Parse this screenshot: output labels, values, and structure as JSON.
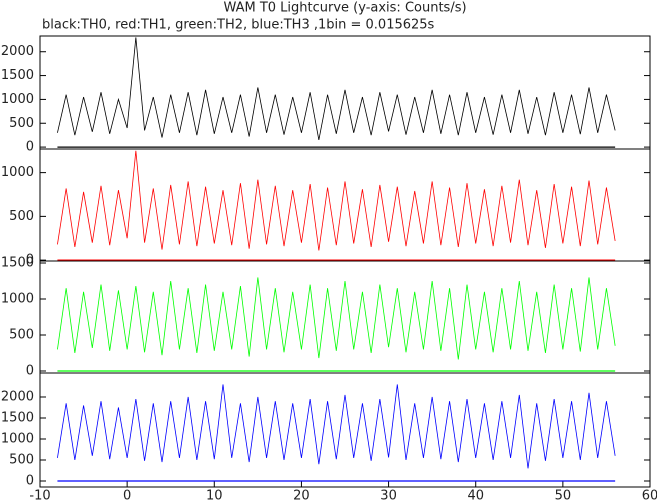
{
  "chart_data": [
    {
      "type": "line",
      "title": "WAM T0 Lightcurve (y-axis: Counts/s)",
      "subtitle": "black:TH0, red:TH1, green:TH2, blue:TH3 ,1bin = 0.015625s",
      "x": [
        -8,
        -7,
        -6,
        -5,
        -4,
        -3,
        -2,
        -1,
        0,
        1,
        2,
        3,
        4,
        5,
        6,
        7,
        8,
        9,
        10,
        11,
        12,
        13,
        14,
        15,
        16,
        17,
        18,
        19,
        20,
        21,
        22,
        23,
        24,
        25,
        26,
        27,
        28,
        29,
        30,
        31,
        32,
        33,
        34,
        35,
        36,
        37,
        38,
        39,
        40,
        41,
        42,
        43,
        44,
        45,
        46,
        47,
        48,
        49,
        50,
        51,
        52,
        53,
        54,
        55,
        56
      ],
      "series": [
        {
          "name": "TH0",
          "color": "#000000",
          "values": [
            300,
            1100,
            250,
            1050,
            320,
            1150,
            280,
            1000,
            400,
            2300,
            350,
            1050,
            200,
            1100,
            300,
            1150,
            250,
            1200,
            280,
            1050,
            300,
            1100,
            220,
            1250,
            300,
            1100,
            260,
            1050,
            300,
            1150,
            150,
            1100,
            280,
            1200,
            300,
            1050,
            250,
            1150,
            330,
            1100,
            260,
            1050,
            300,
            1200,
            280,
            1100,
            250,
            1150,
            300,
            1050,
            260,
            1100,
            300,
            1200,
            280,
            1050,
            250,
            1150,
            300,
            1100,
            270,
            1250,
            300,
            1100,
            350
          ]
        }
      ],
      "xlim": [
        -10,
        60
      ],
      "ylim": [
        -40,
        2330
      ],
      "yticks": [
        0,
        500,
        1000,
        1500,
        2000
      ]
    },
    {
      "type": "line",
      "x": [
        -8,
        -7,
        -6,
        -5,
        -4,
        -3,
        -2,
        -1,
        0,
        1,
        2,
        3,
        4,
        5,
        6,
        7,
        8,
        9,
        10,
        11,
        12,
        13,
        14,
        15,
        16,
        17,
        18,
        19,
        20,
        21,
        22,
        23,
        24,
        25,
        26,
        27,
        28,
        29,
        30,
        31,
        32,
        33,
        34,
        35,
        36,
        37,
        38,
        39,
        40,
        41,
        42,
        43,
        44,
        45,
        46,
        47,
        48,
        49,
        50,
        51,
        52,
        53,
        54,
        55,
        56
      ],
      "series": [
        {
          "name": "TH1",
          "color": "#ff0000",
          "values": [
            180,
            820,
            150,
            780,
            200,
            850,
            170,
            800,
            250,
            1250,
            200,
            820,
            120,
            860,
            180,
            900,
            160,
            840,
            190,
            800,
            170,
            880,
            130,
            920,
            180,
            850,
            160,
            800,
            200,
            870,
            110,
            830,
            170,
            900,
            190,
            810,
            150,
            860,
            210,
            840,
            160,
            790,
            190,
            900,
            170,
            830,
            150,
            880,
            190,
            810,
            160,
            850,
            200,
            920,
            170,
            800,
            140,
            870,
            190,
            840,
            160,
            910,
            180,
            830,
            220
          ]
        }
      ],
      "xlim": [
        -10,
        60
      ],
      "ylim": [
        -10,
        1270
      ],
      "yticks": [
        0,
        500,
        1000
      ]
    },
    {
      "type": "line",
      "x": [
        -8,
        -7,
        -6,
        -5,
        -4,
        -3,
        -2,
        -1,
        0,
        1,
        2,
        3,
        4,
        5,
        6,
        7,
        8,
        9,
        10,
        11,
        12,
        13,
        14,
        15,
        16,
        17,
        18,
        19,
        20,
        21,
        22,
        23,
        24,
        25,
        26,
        27,
        28,
        29,
        30,
        31,
        32,
        33,
        34,
        35,
        36,
        37,
        38,
        39,
        40,
        41,
        42,
        43,
        44,
        45,
        46,
        47,
        48,
        49,
        50,
        51,
        52,
        53,
        54,
        55,
        56
      ],
      "series": [
        {
          "name": "TH2",
          "color": "#00ff00",
          "values": [
            300,
            1150,
            250,
            1100,
            320,
            1200,
            280,
            1120,
            300,
            1180,
            260,
            1100,
            220,
            1250,
            300,
            1150,
            250,
            1200,
            280,
            1100,
            300,
            1180,
            200,
            1300,
            300,
            1150,
            260,
            1100,
            300,
            1200,
            180,
            1150,
            280,
            1250,
            300,
            1100,
            250,
            1200,
            330,
            1150,
            260,
            1100,
            300,
            1250,
            280,
            1150,
            160,
            1200,
            300,
            1100,
            260,
            1150,
            300,
            1250,
            280,
            1100,
            250,
            1200,
            300,
            1150,
            270,
            1300,
            300,
            1150,
            350
          ]
        }
      ],
      "xlim": [
        -10,
        60
      ],
      "ylim": [
        -28,
        1528
      ],
      "yticks": [
        0,
        500,
        1000,
        1500
      ]
    },
    {
      "type": "line",
      "x": [
        -8,
        -7,
        -6,
        -5,
        -4,
        -3,
        -2,
        -1,
        0,
        1,
        2,
        3,
        4,
        5,
        6,
        7,
        8,
        9,
        10,
        11,
        12,
        13,
        14,
        15,
        16,
        17,
        18,
        19,
        20,
        21,
        22,
        23,
        24,
        25,
        26,
        27,
        28,
        29,
        30,
        31,
        32,
        33,
        34,
        35,
        36,
        37,
        38,
        39,
        40,
        41,
        42,
        43,
        44,
        45,
        46,
        47,
        48,
        49,
        50,
        51,
        52,
        53,
        54,
        55,
        56
      ],
      "series": [
        {
          "name": "TH3",
          "color": "#0000ff",
          "values": [
            550,
            1850,
            500,
            1800,
            600,
            1900,
            520,
            1750,
            550,
            1950,
            480,
            1850,
            450,
            1900,
            550,
            2000,
            500,
            1900,
            520,
            2300,
            550,
            1850,
            450,
            2000,
            550,
            1900,
            500,
            1850,
            550,
            1950,
            400,
            1900,
            520,
            2050,
            550,
            1850,
            480,
            1950,
            560,
            2300,
            500,
            1850,
            550,
            2000,
            520,
            1900,
            450,
            1950,
            550,
            1850,
            500,
            1900,
            550,
            2050,
            300,
            1850,
            480,
            1950,
            550,
            1900,
            500,
            2100,
            550,
            1900,
            600
          ]
        }
      ],
      "xlim": [
        -10,
        60
      ],
      "ylim": [
        -143,
        2571
      ],
      "yticks": [
        0,
        500,
        1000,
        1500,
        2000
      ],
      "xticks": [
        -10,
        0,
        10,
        20,
        30,
        40,
        50,
        60
      ]
    }
  ]
}
